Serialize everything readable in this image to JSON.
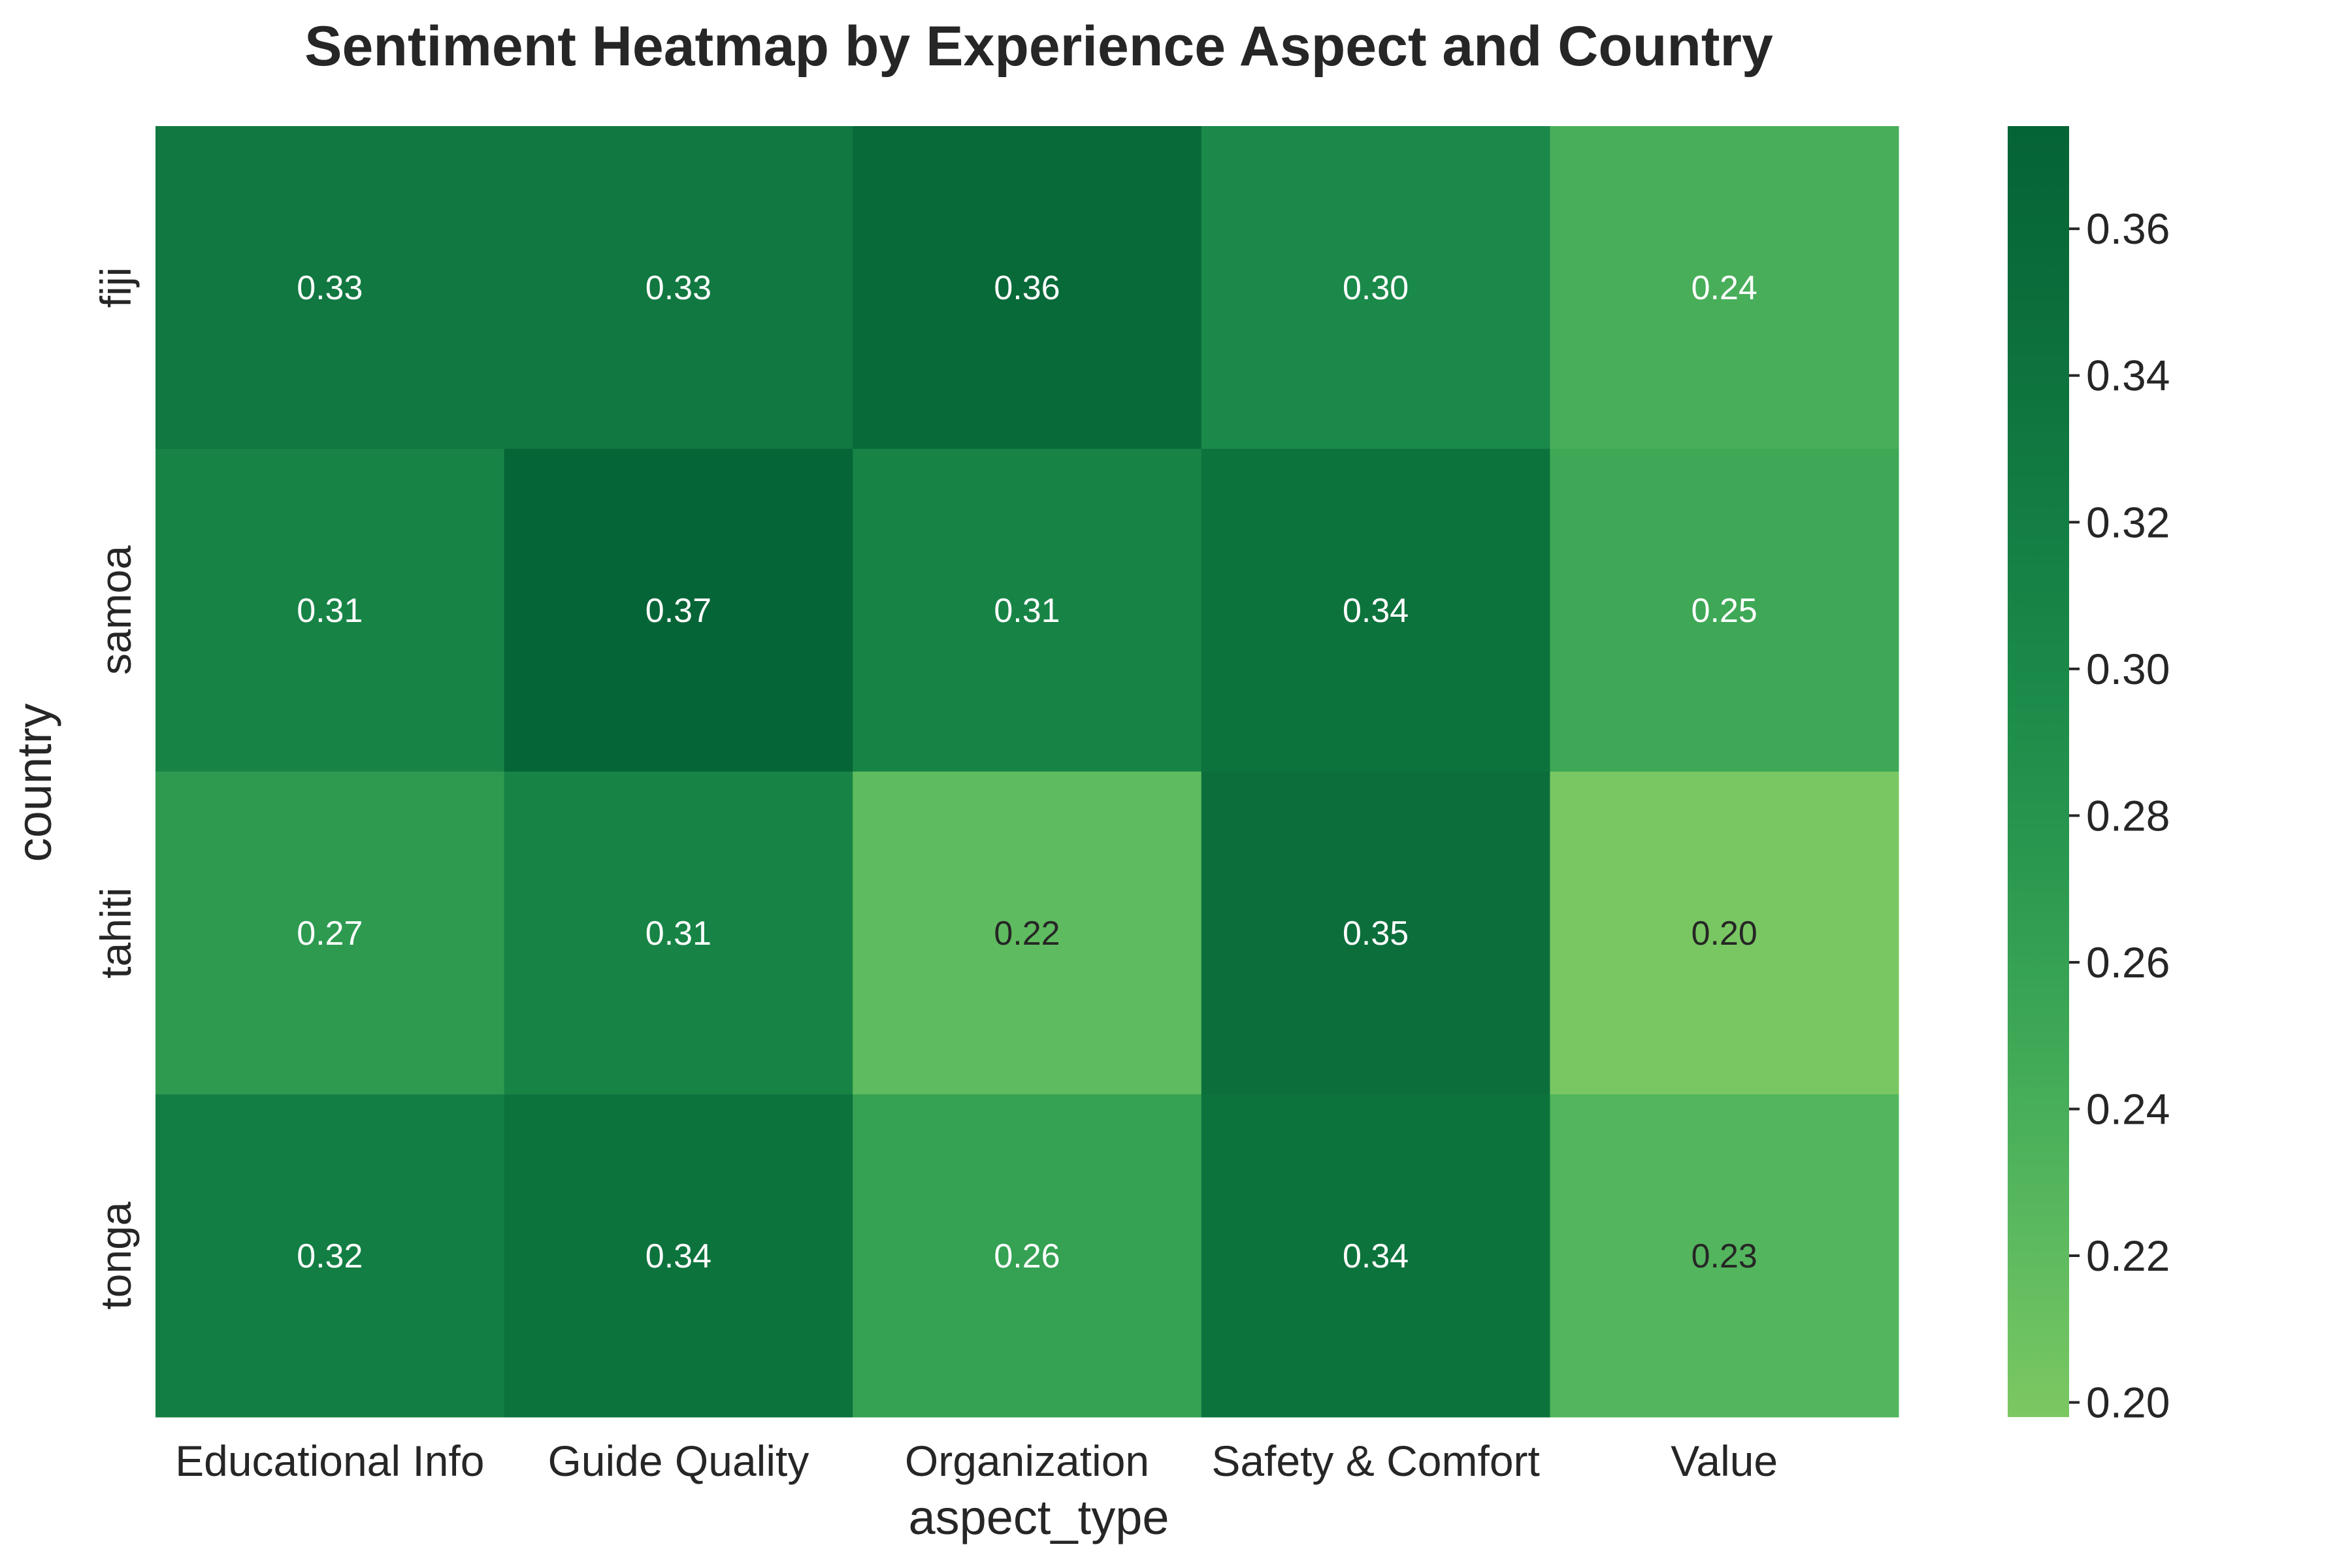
{
  "chart_data": {
    "type": "heatmap",
    "title": "Sentiment Heatmap by Experience Aspect and Country",
    "xlabel": "aspect_type",
    "ylabel": "country",
    "columns": [
      "Educational Info",
      "Guide Quality",
      "Organization",
      "Safety & Comfort",
      "Value"
    ],
    "rows": [
      "fiji",
      "samoa",
      "tahiti",
      "tonga"
    ],
    "values": [
      [
        0.33,
        0.33,
        0.36,
        0.3,
        0.24
      ],
      [
        0.31,
        0.37,
        0.31,
        0.34,
        0.25
      ],
      [
        0.27,
        0.31,
        0.22,
        0.35,
        0.2
      ],
      [
        0.32,
        0.34,
        0.26,
        0.34,
        0.23
      ]
    ],
    "cell_labels": [
      [
        "0.33",
        "0.33",
        "0.36",
        "0.30",
        "0.24"
      ],
      [
        "0.31",
        "0.37",
        "0.31",
        "0.34",
        "0.25"
      ],
      [
        "0.27",
        "0.31",
        "0.22",
        "0.35",
        "0.20"
      ],
      [
        "0.32",
        "0.34",
        "0.26",
        "0.34",
        "0.23"
      ]
    ],
    "colorbar": {
      "range": [
        0.198,
        0.374
      ],
      "ticks": [
        0.2,
        0.22,
        0.24,
        0.26,
        0.28,
        0.3,
        0.32,
        0.34,
        0.36
      ],
      "tick_labels": [
        "0.20",
        "0.22",
        "0.24",
        "0.26",
        "0.28",
        "0.30",
        "0.32",
        "0.34",
        "0.36"
      ],
      "colors": [
        "#7cc862",
        "#5bb95f",
        "#3fa957",
        "#2a984f",
        "#1b8a49",
        "#127c42",
        "#0b6e3b",
        "#056336"
      ]
    },
    "grid": false
  }
}
